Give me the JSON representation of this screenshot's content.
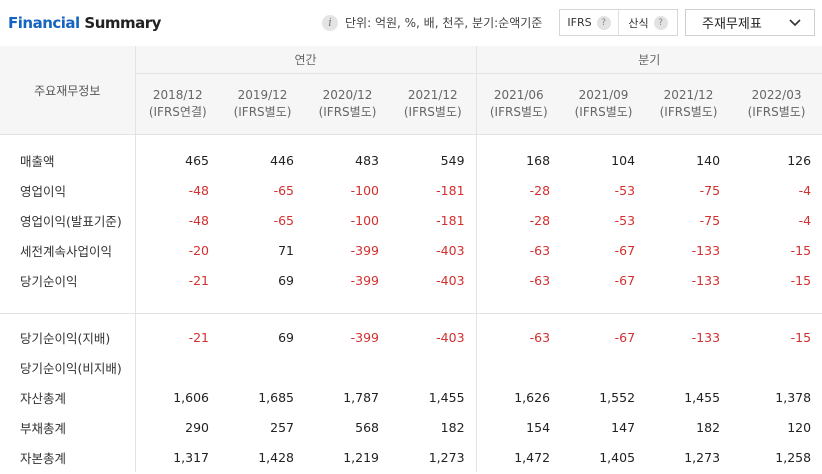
{
  "header": {
    "title_accent": "Financial",
    "title_rest": " Summary",
    "info_icon": "info-icon",
    "unit_text": "단위: 억원, %, 배, 천주, 분기:순액기준",
    "toggles": [
      {
        "label": "IFRS",
        "help": "?"
      },
      {
        "label": "산식",
        "help": "?"
      }
    ],
    "statement_select": {
      "value": "주재무제표",
      "icon": "chevron-down-icon"
    }
  },
  "table": {
    "row_header": "주요재무정보",
    "annual_label": "연간",
    "quarter_label": "분기",
    "periods": [
      {
        "date": "2018/12",
        "basis": "(IFRS연결)"
      },
      {
        "date": "2019/12",
        "basis": "(IFRS별도)"
      },
      {
        "date": "2020/12",
        "basis": "(IFRS별도)"
      },
      {
        "date": "2021/12",
        "basis": "(IFRS별도)"
      },
      {
        "date": "2021/06",
        "basis": "(IFRS별도)"
      },
      {
        "date": "2021/09",
        "basis": "(IFRS별도)"
      },
      {
        "date": "2021/12",
        "basis": "(IFRS별도)"
      },
      {
        "date": "2022/03",
        "basis": "(IFRS별도)"
      }
    ],
    "rows": [
      {
        "label": "매출액",
        "values": [
          "465",
          "446",
          "483",
          "549",
          "168",
          "104",
          "140",
          "126"
        ]
      },
      {
        "label": "영업이익",
        "values": [
          "-48",
          "-65",
          "-100",
          "-181",
          "-28",
          "-53",
          "-75",
          "-4"
        ]
      },
      {
        "label": "영업이익(발표기준)",
        "values": [
          "-48",
          "-65",
          "-100",
          "-181",
          "-28",
          "-53",
          "-75",
          "-4"
        ]
      },
      {
        "label": "세전계속사업이익",
        "values": [
          "-20",
          "71",
          "-399",
          "-403",
          "-63",
          "-67",
          "-133",
          "-15"
        ]
      },
      {
        "label": "당기순이익",
        "values": [
          "-21",
          "69",
          "-399",
          "-403",
          "-63",
          "-67",
          "-133",
          "-15"
        ]
      },
      {
        "label": "당기순이익(지배)",
        "values": [
          "-21",
          "69",
          "-399",
          "-403",
          "-63",
          "-67",
          "-133",
          "-15"
        ]
      },
      {
        "label": "당기순이익(비지배)",
        "values": [
          "",
          "",
          "",
          "",
          "",
          "",
          "",
          ""
        ]
      },
      {
        "label": "자산총계",
        "values": [
          "1,606",
          "1,685",
          "1,787",
          "1,455",
          "1,626",
          "1,552",
          "1,455",
          "1,378"
        ]
      },
      {
        "label": "부채총계",
        "values": [
          "290",
          "257",
          "568",
          "182",
          "154",
          "147",
          "182",
          "120"
        ]
      },
      {
        "label": "자본총계",
        "values": [
          "1,317",
          "1,428",
          "1,219",
          "1,273",
          "1,472",
          "1,405",
          "1,273",
          "1,258"
        ]
      }
    ]
  },
  "colors": {
    "accent": "#1565c0",
    "negative": "#d32f2f",
    "header_bg": "#f6f6f6"
  }
}
